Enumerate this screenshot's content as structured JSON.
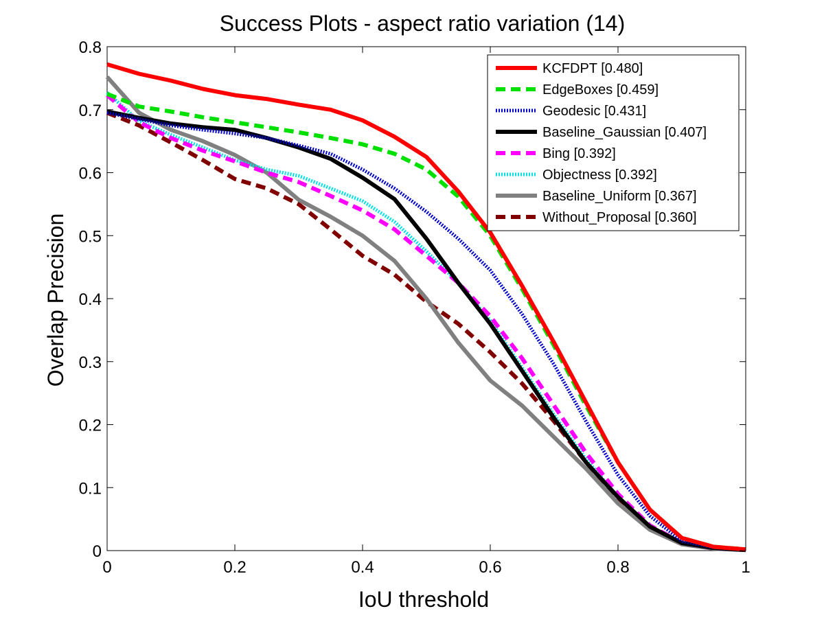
{
  "chart_data": {
    "type": "line",
    "title": "Success Plots - aspect ratio variation (14)",
    "xlabel": "IoU threshold",
    "ylabel": "Overlap Precision",
    "xlim": [
      0,
      1
    ],
    "ylim": [
      0,
      0.8
    ],
    "xticks": [
      "0",
      "0.2",
      "0.4",
      "0.6",
      "0.8",
      "1"
    ],
    "yticks": [
      "0",
      "0.1",
      "0.2",
      "0.3",
      "0.4",
      "0.5",
      "0.6",
      "0.7",
      "0.8"
    ],
    "grid": false,
    "legend_position": "top-right",
    "x": [
      0,
      0.05,
      0.1,
      0.15,
      0.2,
      0.25,
      0.3,
      0.35,
      0.4,
      0.45,
      0.5,
      0.55,
      0.6,
      0.65,
      0.7,
      0.75,
      0.8,
      0.85,
      0.9,
      0.95,
      1.0
    ],
    "series": [
      {
        "name": "KCFDPT [0.480]",
        "color": "#ff0000",
        "style": "solid",
        "values": [
          0.772,
          0.757,
          0.746,
          0.733,
          0.723,
          0.717,
          0.708,
          0.7,
          0.683,
          0.657,
          0.625,
          0.57,
          0.505,
          0.42,
          0.33,
          0.235,
          0.14,
          0.065,
          0.02,
          0.006,
          0.002
        ]
      },
      {
        "name": "EdgeBoxes [0.459]",
        "color": "#00e000",
        "style": "dashed",
        "values": [
          0.725,
          0.705,
          0.697,
          0.688,
          0.68,
          0.672,
          0.664,
          0.655,
          0.645,
          0.63,
          0.605,
          0.562,
          0.5,
          0.415,
          0.325,
          0.23,
          0.14,
          0.065,
          0.02,
          0.006,
          0.002
        ]
      },
      {
        "name": "Geodesic [0.431]",
        "color": "#0000c8",
        "style": "dotted",
        "values": [
          0.695,
          0.685,
          0.675,
          0.668,
          0.662,
          0.655,
          0.643,
          0.63,
          0.605,
          0.575,
          0.538,
          0.495,
          0.445,
          0.375,
          0.295,
          0.205,
          0.12,
          0.055,
          0.015,
          0.005,
          0.002
        ]
      },
      {
        "name": "Baseline_Gaussian [0.407]",
        "color": "#000000",
        "style": "solid",
        "values": [
          0.697,
          0.687,
          0.678,
          0.672,
          0.668,
          0.655,
          0.64,
          0.622,
          0.592,
          0.558,
          0.495,
          0.425,
          0.36,
          0.285,
          0.21,
          0.14,
          0.085,
          0.038,
          0.012,
          0.004,
          0.001
        ]
      },
      {
        "name": "Bing [0.392]",
        "color": "#ff00ff",
        "style": "dashed",
        "values": [
          0.723,
          0.68,
          0.655,
          0.635,
          0.618,
          0.6,
          0.585,
          0.563,
          0.54,
          0.51,
          0.468,
          0.425,
          0.372,
          0.305,
          0.23,
          0.155,
          0.09,
          0.04,
          0.012,
          0.004,
          0.001
        ]
      },
      {
        "name": "Objectness [0.392]",
        "color": "#00e0e0",
        "style": "dotted",
        "values": [
          0.727,
          0.682,
          0.66,
          0.64,
          0.62,
          0.605,
          0.595,
          0.575,
          0.555,
          0.522,
          0.475,
          0.425,
          0.365,
          0.29,
          0.215,
          0.145,
          0.085,
          0.038,
          0.012,
          0.004,
          0.001
        ]
      },
      {
        "name": "Baseline_Uniform [0.367]",
        "color": "#808080",
        "style": "solid",
        "values": [
          0.752,
          0.695,
          0.668,
          0.65,
          0.628,
          0.6,
          0.557,
          0.53,
          0.5,
          0.46,
          0.4,
          0.33,
          0.27,
          0.23,
          0.18,
          0.13,
          0.075,
          0.033,
          0.01,
          0.003,
          0.001
        ]
      },
      {
        "name": "Without_Proposal [0.360]",
        "color": "#800000",
        "style": "dashed",
        "values": [
          0.695,
          0.675,
          0.648,
          0.62,
          0.59,
          0.575,
          0.55,
          0.51,
          0.468,
          0.438,
          0.395,
          0.36,
          0.315,
          0.265,
          0.205,
          0.14,
          0.082,
          0.038,
          0.012,
          0.004,
          0.001
        ]
      }
    ]
  }
}
